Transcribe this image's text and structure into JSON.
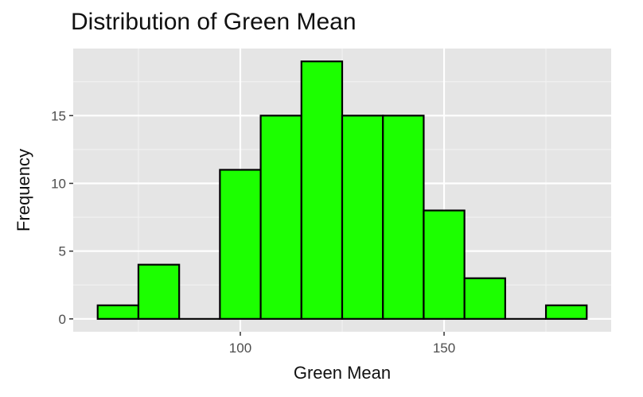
{
  "chart_data": {
    "type": "bar",
    "title": "Distribution of Green Mean",
    "xlabel": "Green Mean",
    "ylabel": "Frequency",
    "bin_width": 10,
    "bins": [
      {
        "x0": 65,
        "x1": 75,
        "count": 1
      },
      {
        "x0": 75,
        "x1": 85,
        "count": 4
      },
      {
        "x0": 85,
        "x1": 95,
        "count": 0
      },
      {
        "x0": 95,
        "x1": 105,
        "count": 11
      },
      {
        "x0": 105,
        "x1": 115,
        "count": 15
      },
      {
        "x0": 115,
        "x1": 125,
        "count": 19
      },
      {
        "x0": 125,
        "x1": 135,
        "count": 15
      },
      {
        "x0": 135,
        "x1": 145,
        "count": 15
      },
      {
        "x0": 145,
        "x1": 155,
        "count": 8
      },
      {
        "x0": 155,
        "x1": 165,
        "count": 3
      },
      {
        "x0": 165,
        "x1": 175,
        "count": 0
      },
      {
        "x0": 175,
        "x1": 185,
        "count": 1
      }
    ],
    "xlim": [
      59,
      191
    ],
    "ylim": [
      -0.95,
      19.95
    ],
    "x_ticks": [
      100,
      150
    ],
    "x_minor_ticks": [
      75,
      125,
      175
    ],
    "y_ticks": [
      0,
      5,
      10,
      15
    ],
    "y_minor_ticks": [
      2.5,
      7.5,
      12.5,
      17.5
    ],
    "grid": true,
    "colors": {
      "bar_fill": "#1cff00",
      "bar_stroke": "#000000",
      "panel_bg": "#e5e5e5",
      "grid_major": "#ffffff",
      "grid_minor": "#f2f2f2"
    }
  }
}
